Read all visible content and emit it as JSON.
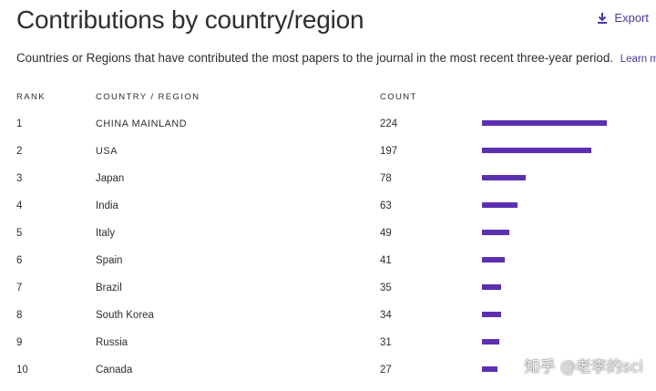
{
  "header": {
    "title": "Contributions by country/region",
    "export_label": "Export",
    "export_icon": "download-icon"
  },
  "description": {
    "text": "Countries or Regions that have contributed the most papers to the journal in the most recent three-year period.",
    "learn_more": "Learn more"
  },
  "table": {
    "columns": {
      "rank": "RANK",
      "country": "COUNTRY / REGION",
      "count": "COUNT"
    },
    "bar_color": "#5b2fb0",
    "max_count": 224,
    "rows": [
      {
        "rank": "1",
        "country": "CHINA MAINLAND",
        "count": 224
      },
      {
        "rank": "2",
        "country": "USA",
        "count": 197
      },
      {
        "rank": "3",
        "country": "Japan",
        "count": 78
      },
      {
        "rank": "4",
        "country": "India",
        "count": 63
      },
      {
        "rank": "5",
        "country": "Italy",
        "count": 49
      },
      {
        "rank": "6",
        "country": "Spain",
        "count": 41
      },
      {
        "rank": "7",
        "country": "Brazil",
        "count": 35
      },
      {
        "rank": "8",
        "country": "South Korea",
        "count": 34
      },
      {
        "rank": "9",
        "country": "Russia",
        "count": 31
      },
      {
        "rank": "10",
        "country": "Canada",
        "count": 27
      }
    ]
  },
  "watermark": "知乎 @老李的sci",
  "accent_color": "#4a3a9a"
}
